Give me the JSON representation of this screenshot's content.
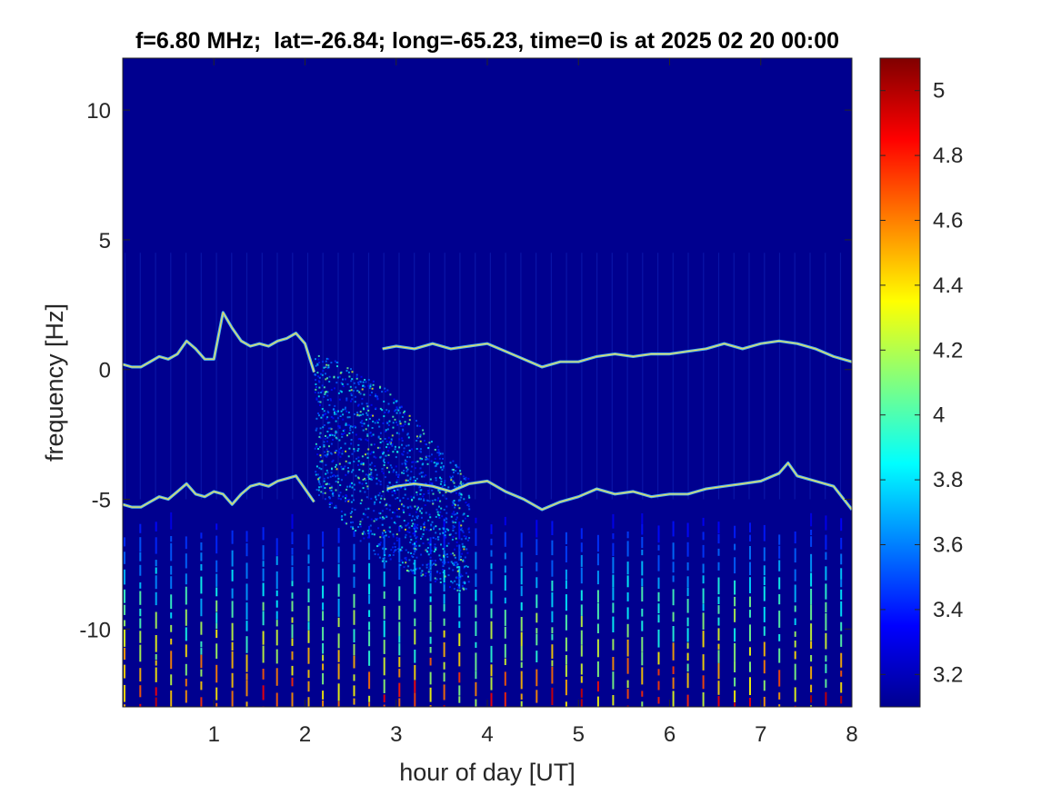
{
  "chart_data": {
    "type": "heatmap",
    "title": "f=6.80 MHz;  lat=-26.84; long=-65.23, time=0 is at 2025 02 20 00:00",
    "xlabel": "hour of day [UT]",
    "ylabel": "frequency [Hz]",
    "xlim": [
      0,
      8
    ],
    "ylim": [
      -13,
      12
    ],
    "xticks": [
      1,
      2,
      3,
      4,
      5,
      6,
      7,
      8
    ],
    "yticks": [
      10,
      5,
      0,
      -5,
      -10
    ],
    "colormap": "jet",
    "clim": [
      3.1,
      5.1
    ],
    "colorbar_ticks": [
      5,
      4.8,
      4.6,
      4.4,
      4.2,
      4,
      3.8,
      3.6,
      3.4,
      3.2
    ],
    "background_color": "#00008f",
    "traces": [
      {
        "hours": [
          0,
          0.1,
          0.2,
          0.3,
          0.4,
          0.5,
          0.6,
          0.7,
          0.8,
          0.9,
          1.0,
          1.1,
          1.2,
          1.3,
          1.4,
          1.5,
          1.6,
          1.7,
          1.8,
          1.9,
          2.0,
          2.1
        ],
        "freq_hz": [
          0.2,
          0.1,
          0.1,
          0.3,
          0.5,
          0.4,
          0.6,
          1.1,
          0.8,
          0.4,
          0.4,
          2.2,
          1.6,
          1.1,
          0.9,
          1.0,
          0.9,
          1.1,
          1.2,
          1.4,
          1.0,
          -0.1
        ]
      },
      {
        "hours": [
          2.85,
          3.0,
          3.2,
          3.4,
          3.6,
          3.8,
          4.0,
          4.2,
          4.4,
          4.6,
          4.8,
          5.0,
          5.2,
          5.4,
          5.6,
          5.8,
          6.0,
          6.2,
          6.4,
          6.6,
          6.8,
          7.0,
          7.2,
          7.4,
          7.6,
          7.8,
          8.0
        ],
        "freq_hz": [
          0.8,
          0.9,
          0.8,
          1.0,
          0.8,
          0.9,
          1.0,
          0.7,
          0.4,
          0.1,
          0.3,
          0.3,
          0.5,
          0.6,
          0.5,
          0.6,
          0.6,
          0.7,
          0.8,
          1.0,
          0.8,
          1.0,
          1.1,
          1.0,
          0.8,
          0.5,
          0.3
        ]
      },
      {
        "hours": [
          0,
          0.1,
          0.2,
          0.3,
          0.4,
          0.5,
          0.6,
          0.7,
          0.8,
          0.9,
          1.0,
          1.1,
          1.2,
          1.3,
          1.4,
          1.5,
          1.6,
          1.7,
          1.8,
          1.9,
          2.0,
          2.1
        ],
        "freq_hz": [
          -5.2,
          -5.3,
          -5.3,
          -5.1,
          -4.9,
          -5.0,
          -4.7,
          -4.4,
          -4.8,
          -4.9,
          -4.7,
          -4.8,
          -5.2,
          -4.8,
          -4.5,
          -4.4,
          -4.5,
          -4.3,
          -4.2,
          -4.1,
          -4.6,
          -5.1
        ]
      },
      {
        "hours": [
          2.9,
          3.0,
          3.2,
          3.4,
          3.6,
          3.8,
          4.0,
          4.2,
          4.4,
          4.6,
          4.8,
          5.0,
          5.2,
          5.4,
          5.6,
          5.8,
          6.0,
          6.2,
          6.4,
          6.6,
          6.8,
          7.0,
          7.2,
          7.3,
          7.4,
          7.6,
          7.8,
          8.0
        ],
        "freq_hz": [
          -4.6,
          -4.5,
          -4.4,
          -4.5,
          -4.7,
          -4.4,
          -4.3,
          -4.7,
          -5.0,
          -5.4,
          -5.1,
          -4.9,
          -4.6,
          -4.8,
          -4.7,
          -4.9,
          -4.8,
          -4.8,
          -4.6,
          -4.5,
          -4.4,
          -4.3,
          -4.0,
          -3.6,
          -4.1,
          -4.3,
          -4.5,
          -5.4
        ]
      }
    ],
    "scatter_region": {
      "hours": [
        2.1,
        3.8
      ],
      "freq_hz": [
        -8.5,
        -1.0
      ]
    },
    "vertical_stripes": {
      "period_hours": 0.167,
      "freq_range_hz": [
        -13,
        -5.5
      ],
      "peak_level": 4.9
    }
  }
}
